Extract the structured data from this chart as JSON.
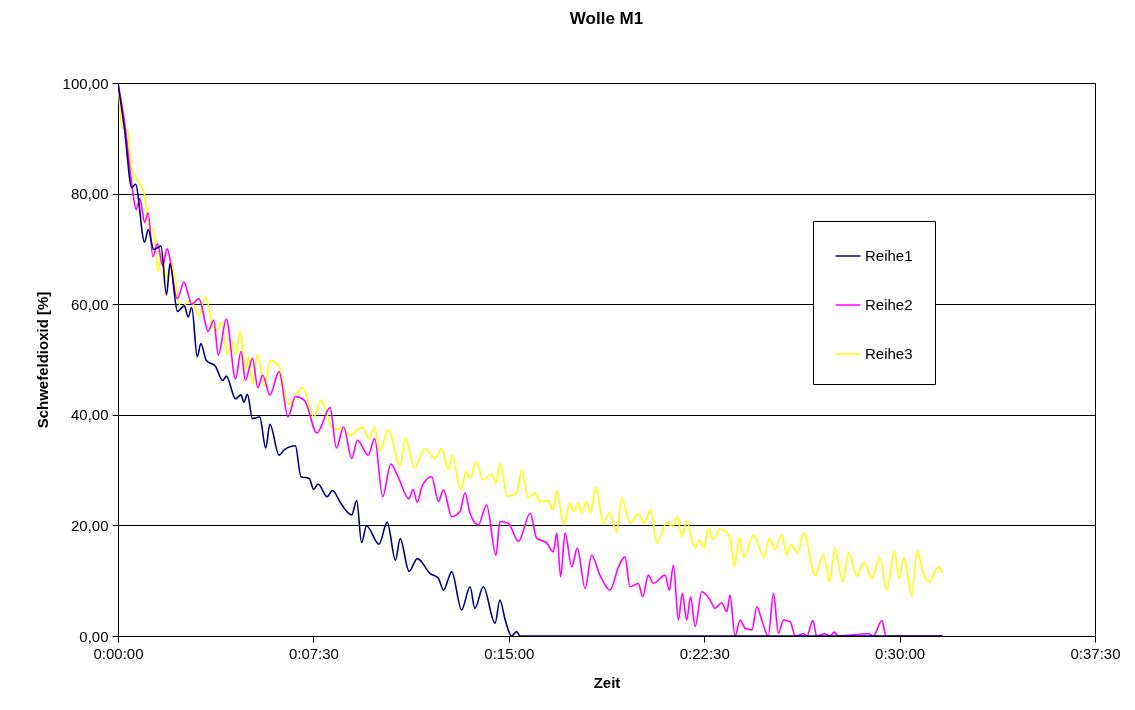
{
  "chart_data": {
    "type": "line",
    "title": "Wolle M1",
    "xlabel": "Zeit",
    "ylabel": "Schwefeldioxid [%]",
    "xlim": [
      0,
      0.625
    ],
    "xticks": [
      {
        "value": 0,
        "label": "0:00:00"
      },
      {
        "value": 0.125,
        "label": "0:07:30"
      },
      {
        "value": 0.25,
        "label": "0:15:00"
      },
      {
        "value": 0.375,
        "label": "0:22:30"
      },
      {
        "value": 0.5,
        "label": "0:30:00"
      },
      {
        "value": 0.625,
        "label": "0:37:30"
      }
    ],
    "ylim": [
      0,
      100
    ],
    "yticks": [
      {
        "value": 0,
        "label": "0,00"
      },
      {
        "value": 20,
        "label": "20,00"
      },
      {
        "value": 40,
        "label": "40,00"
      },
      {
        "value": 60,
        "label": "60,00"
      },
      {
        "value": 80,
        "label": "80,00"
      },
      {
        "value": 100,
        "label": "100,00"
      }
    ],
    "grid": "y",
    "legend": "right",
    "series": [
      {
        "name": "Reihe1",
        "color": "#000080",
        "x": [
          0,
          0.0042,
          0.0088,
          0.0112,
          0.017,
          0.0193,
          0.0228,
          0.0275,
          0.031,
          0.0333,
          0.038,
          0.0425,
          0.0448,
          0.0472,
          0.0507,
          0.053,
          0.0565,
          0.0623,
          0.067,
          0.0693,
          0.0752,
          0.0787,
          0.0805,
          0.0828,
          0.086,
          0.0907,
          0.0945,
          0.0972,
          0.103,
          0.1065,
          0.1135,
          0.117,
          0.1223,
          0.1252,
          0.128,
          0.1338,
          0.1372,
          0.1427,
          0.1495,
          0.1527,
          0.1558,
          0.159,
          0.167,
          0.1722,
          0.1775,
          0.1805,
          0.1862,
          0.1915,
          0.1997,
          0.205,
          0.2082,
          0.2135,
          0.2198,
          0.2252,
          0.2283,
          0.2337,
          0.2412,
          0.2443,
          0.2477,
          0.2518,
          0.255,
          0.2572,
          0.5277
        ],
        "values": [
          100,
          91.6,
          81.1,
          81.7,
          71.2,
          73.5,
          69.9,
          70.5,
          61.7,
          67.3,
          58.7,
          59.7,
          57.7,
          59.4,
          50.5,
          52.9,
          49.8,
          48.8,
          46.2,
          47.0,
          42.9,
          43.6,
          42.3,
          43.7,
          39.3,
          39.6,
          34.0,
          38.3,
          32.7,
          33.7,
          34.4,
          28.8,
          28.5,
          26.5,
          27.5,
          25.2,
          26.3,
          23.9,
          21.9,
          24.5,
          16.9,
          19.9,
          16.6,
          20.6,
          13.7,
          17.6,
          11.7,
          14.0,
          11.3,
          10.4,
          8.3,
          11.6,
          4.7,
          8.9,
          5.0,
          8.9,
          2.3,
          6.5,
          2.9,
          0,
          0.8,
          0,
          0
        ]
      },
      {
        "name": "Reihe2",
        "color": "#ff00ff",
        "x": [
          0,
          0.0042,
          0.0088,
          0.0117,
          0.014,
          0.017,
          0.0193,
          0.0223,
          0.0252,
          0.0287,
          0.0313,
          0.038,
          0.0422,
          0.0472,
          0.0518,
          0.0577,
          0.0612,
          0.0642,
          0.0693,
          0.0752,
          0.0787,
          0.0815,
          0.086,
          0.0895,
          0.0925,
          0.0972,
          0.103,
          0.1088,
          0.1135,
          0.1193,
          0.1273,
          0.1357,
          0.1397,
          0.1443,
          0.1495,
          0.1532,
          0.16,
          0.1642,
          0.1693,
          0.1745,
          0.1787,
          0.1862,
          0.1887,
          0.1915,
          0.1945,
          0.2007,
          0.205,
          0.2082,
          0.2135,
          0.2188,
          0.222,
          0.2252,
          0.2305,
          0.2358,
          0.2418,
          0.2443,
          0.2497,
          0.2562,
          0.2637,
          0.2678,
          0.2743,
          0.2785,
          0.2807,
          0.2832,
          0.286,
          0.2903,
          0.2938,
          0.2988,
          0.303,
          0.3083,
          0.3148,
          0.3202,
          0.3243,
          0.3275,
          0.3328,
          0.3357,
          0.3393,
          0.3425,
          0.35,
          0.3527,
          0.3553,
          0.3585,
          0.361,
          0.3638,
          0.3663,
          0.3692,
          0.3735,
          0.3788,
          0.382,
          0.3862,
          0.3895,
          0.3915,
          0.3947,
          0.398,
          0.4012,
          0.4055,
          0.4087,
          0.4118,
          0.416,
          0.4193,
          0.4225,
          0.4257,
          0.43,
          0.4332,
          0.4385,
          0.4407,
          0.4445,
          0.447,
          0.4523,
          0.4555,
          0.4582,
          0.4608,
          0.48,
          0.4832,
          0.4887,
          0.4913,
          0.5277
        ],
        "values": [
          100,
          92.9,
          81.7,
          77.1,
          79.1,
          74.8,
          76.5,
          68.6,
          70.9,
          66.9,
          70.0,
          61.0,
          64.0,
          60.0,
          61.0,
          55.1,
          57.1,
          50.8,
          57.3,
          46.5,
          51.5,
          46.2,
          50.2,
          44.9,
          47.2,
          43.6,
          47.8,
          39.6,
          43.3,
          42.6,
          36.7,
          41.3,
          34.0,
          37.8,
          32.1,
          35.4,
          32.7,
          35.7,
          25.2,
          31.1,
          29.1,
          24.8,
          26.5,
          24.2,
          27.1,
          28.8,
          24.3,
          26.4,
          21.6,
          22.5,
          25.9,
          22.2,
          20.1,
          23.7,
          14.6,
          20.7,
          20.4,
          17.1,
          22.2,
          17.7,
          16.8,
          15.2,
          18.6,
          10.7,
          18.6,
          12.5,
          15.9,
          8.6,
          14.6,
          11.0,
          8.3,
          12.5,
          14.3,
          8.9,
          9.5,
          7.1,
          11.0,
          9.5,
          11.0,
          8.3,
          12.8,
          2.9,
          7.7,
          2.9,
          7.1,
          1.7,
          8.0,
          6.5,
          5.0,
          6.0,
          4.4,
          7.4,
          0,
          2.9,
          1.4,
          1.1,
          5.3,
          2.9,
          0,
          7.7,
          0.5,
          2.9,
          2.6,
          0,
          0.4,
          0,
          2.8,
          0,
          0.4,
          0,
          0.7,
          0,
          0.4,
          0,
          2.8,
          0,
          0
        ]
      },
      {
        "name": "Reihe3",
        "color": "#ffff00",
        "x": [
          0,
          0.003,
          0.006,
          0.0088,
          0.0135,
          0.017,
          0.02,
          0.0228,
          0.0257,
          0.0282,
          0.031,
          0.034,
          0.0402,
          0.0465,
          0.0518,
          0.0558,
          0.0623,
          0.0665,
          0.0698,
          0.0728,
          0.0752,
          0.0782,
          0.0815,
          0.0837,
          0.086,
          0.0892,
          0.0937,
          0.0972,
          0.103,
          0.1088,
          0.1182,
          0.1252,
          0.1298,
          0.138,
          0.1438,
          0.1488,
          0.1532,
          0.1565,
          0.1605,
          0.1642,
          0.1675,
          0.1728,
          0.1805,
          0.1838,
          0.1898,
          0.1962,
          0.2028,
          0.207,
          0.2113,
          0.2138,
          0.2193,
          0.2227,
          0.2252,
          0.229,
          0.2337,
          0.2392,
          0.2418,
          0.2443,
          0.2492,
          0.255,
          0.2583,
          0.2625,
          0.2668,
          0.27,
          0.2753,
          0.2782,
          0.2807,
          0.2853,
          0.2888,
          0.2917,
          0.2945,
          0.2967,
          0.2998,
          0.3023,
          0.3058,
          0.3105,
          0.3143,
          0.319,
          0.3223,
          0.3275,
          0.3328,
          0.3365,
          0.3408,
          0.3447,
          0.351,
          0.3548,
          0.3578,
          0.3607,
          0.3638,
          0.3692,
          0.372,
          0.375,
          0.3777,
          0.3808,
          0.3852,
          0.3873,
          0.3915,
          0.3943,
          0.3975,
          0.4005,
          0.4065,
          0.4133,
          0.4167,
          0.4203,
          0.4247,
          0.4278,
          0.4303,
          0.4347,
          0.4388,
          0.446,
          0.4513,
          0.4552,
          0.4587,
          0.4637,
          0.4672,
          0.4727,
          0.4773,
          0.4822,
          0.4872,
          0.4918,
          0.4967,
          0.4998,
          0.5028,
          0.5078,
          0.5113,
          0.5148,
          0.519,
          0.5248,
          0.5277
        ],
        "values": [
          100,
          91.9,
          91.6,
          84.4,
          82.0,
          79.7,
          73.8,
          73.5,
          65.9,
          69.4,
          64.6,
          67.6,
          59.4,
          60.7,
          57.9,
          61.3,
          54.9,
          56.7,
          50.8,
          53.4,
          50.8,
          55.1,
          48.2,
          50.5,
          45.6,
          50.9,
          45.2,
          49.8,
          48.8,
          41.9,
          44.9,
          39.6,
          42.6,
          37.3,
          37.7,
          36.3,
          37.3,
          37.7,
          35.7,
          37.8,
          33.4,
          37.3,
          30.8,
          35.8,
          30.4,
          33.9,
          32.1,
          33.9,
          30.1,
          32.7,
          26.4,
          29.7,
          28.5,
          31.5,
          28.3,
          29.3,
          27.6,
          31.2,
          25.3,
          25.8,
          30.0,
          24.9,
          25.9,
          24.3,
          24.5,
          22.8,
          26.3,
          20.1,
          24.0,
          22.5,
          24.1,
          22.3,
          24.3,
          22.3,
          26.9,
          20.4,
          22.3,
          18.7,
          24.9,
          20.4,
          22.1,
          20.4,
          22.8,
          16.8,
          20.5,
          19.8,
          21.6,
          18.0,
          20.7,
          15.9,
          17.4,
          15.9,
          19.5,
          17.5,
          19.3,
          19.2,
          17.7,
          12.5,
          17.7,
          14.2,
          18.3,
          14.2,
          17.7,
          15.7,
          18.3,
          14.6,
          16.6,
          15.0,
          18.6,
          11.0,
          14.6,
          9.8,
          15.9,
          9.8,
          15.1,
          10.8,
          13.3,
          10.4,
          14.2,
          8.3,
          15.4,
          10.3,
          14.2,
          7.2,
          15.4,
          11.6,
          9.8,
          12.5,
          11.4
        ]
      }
    ]
  }
}
